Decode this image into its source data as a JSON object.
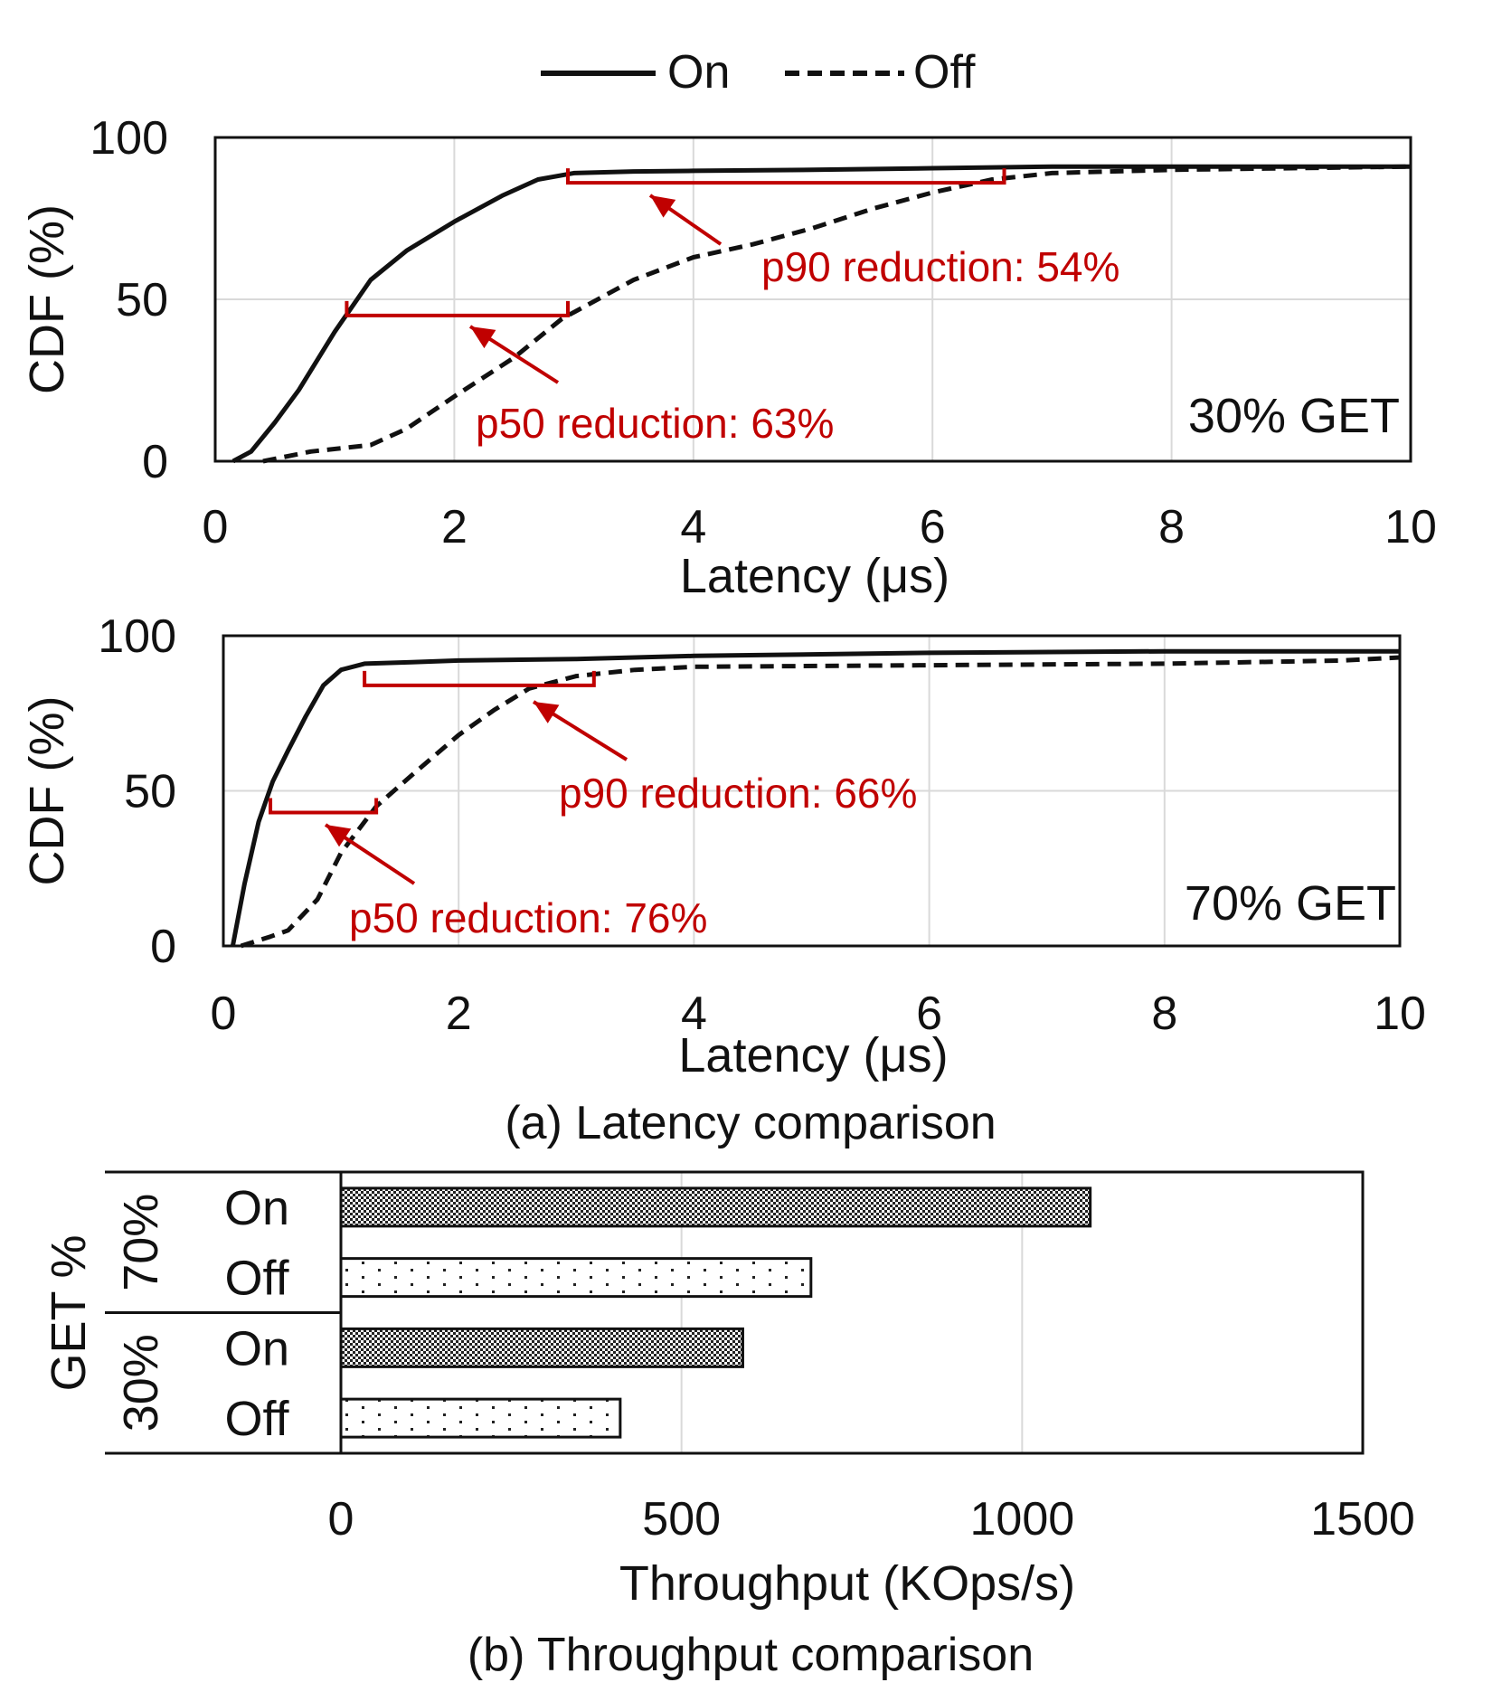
{
  "legend": {
    "items": [
      {
        "label": "On",
        "style": "solid"
      },
      {
        "label": "Off",
        "style": "dashed"
      }
    ]
  },
  "colors": {
    "line": "#111111",
    "annotation": "#c00000",
    "grid": "#d9d9d9"
  },
  "chart_data": [
    {
      "type": "line",
      "panel": "a-top",
      "xlabel": "Latency (μs)",
      "ylabel": "CDF (%)",
      "xlim": [
        0,
        10
      ],
      "ylim": [
        0,
        100
      ],
      "xticks": [
        "0",
        "2",
        "4",
        "6",
        "8",
        "10"
      ],
      "yticks": [
        "0",
        "50",
        "100"
      ],
      "label": "30% GET",
      "series": [
        {
          "name": "On",
          "style": "solid",
          "points": [
            [
              0.15,
              0
            ],
            [
              0.3,
              3
            ],
            [
              0.5,
              12
            ],
            [
              0.7,
              22
            ],
            [
              1.0,
              40
            ],
            [
              1.3,
              56
            ],
            [
              1.6,
              65
            ],
            [
              2.0,
              74
            ],
            [
              2.4,
              82
            ],
            [
              2.7,
              87
            ],
            [
              3.0,
              89
            ],
            [
              3.5,
              89.5
            ],
            [
              4,
              89.7
            ],
            [
              5,
              90
            ],
            [
              6,
              90.5
            ],
            [
              7,
              91
            ],
            [
              8,
              91
            ],
            [
              9,
              91
            ],
            [
              10,
              91
            ]
          ]
        },
        {
          "name": "Off",
          "style": "dashed",
          "points": [
            [
              0.4,
              0
            ],
            [
              0.8,
              3
            ],
            [
              1.3,
              5
            ],
            [
              1.6,
              10
            ],
            [
              2.0,
              20
            ],
            [
              2.5,
              32
            ],
            [
              2.9,
              44
            ],
            [
              3.1,
              48
            ],
            [
              3.5,
              56
            ],
            [
              4.0,
              63
            ],
            [
              4.5,
              67
            ],
            [
              5.0,
              72
            ],
            [
              5.5,
              78
            ],
            [
              6.0,
              83
            ],
            [
              6.5,
              87
            ],
            [
              7.0,
              89
            ],
            [
              8.0,
              90
            ],
            [
              9.0,
              90.5
            ],
            [
              10,
              91
            ]
          ]
        }
      ],
      "annotations": [
        {
          "text": "p90 reduction: 54%",
          "bracket": [
            2.95,
            6.6
          ],
          "bracket_y": 86
        },
        {
          "text": "p50 reduction: 63%",
          "bracket": [
            1.1,
            2.95
          ],
          "bracket_y": 45
        }
      ]
    },
    {
      "type": "line",
      "panel": "a-bottom",
      "xlabel": "Latency (μs)",
      "ylabel": "CDF (%)",
      "xlim": [
        0,
        10
      ],
      "ylim": [
        0,
        100
      ],
      "xticks": [
        "0",
        "2",
        "4",
        "6",
        "8",
        "10"
      ],
      "yticks": [
        "0",
        "50",
        "100"
      ],
      "label": "70% GET",
      "series": [
        {
          "name": "On",
          "style": "solid",
          "points": [
            [
              0.08,
              0
            ],
            [
              0.18,
              20
            ],
            [
              0.3,
              40
            ],
            [
              0.42,
              53
            ],
            [
              0.55,
              63
            ],
            [
              0.7,
              74
            ],
            [
              0.85,
              84
            ],
            [
              1.0,
              89
            ],
            [
              1.2,
              91
            ],
            [
              1.6,
              91.5
            ],
            [
              2,
              92
            ],
            [
              3,
              92.5
            ],
            [
              4,
              93.5
            ],
            [
              6,
              94.5
            ],
            [
              8,
              95
            ],
            [
              10,
              95
            ]
          ]
        },
        {
          "name": "Off",
          "style": "dashed",
          "points": [
            [
              0.15,
              0
            ],
            [
              0.4,
              3
            ],
            [
              0.55,
              5
            ],
            [
              0.8,
              15
            ],
            [
              1.0,
              30
            ],
            [
              1.3,
              45
            ],
            [
              1.6,
              55
            ],
            [
              2.0,
              68
            ],
            [
              2.3,
              76
            ],
            [
              2.6,
              83
            ],
            [
              3.0,
              87
            ],
            [
              3.5,
              89
            ],
            [
              4,
              90
            ],
            [
              6,
              90.5
            ],
            [
              8,
              91
            ],
            [
              9.5,
              92
            ],
            [
              10,
              93
            ]
          ]
        }
      ],
      "annotations": [
        {
          "text": "p90 reduction: 66%",
          "bracket": [
            1.2,
            3.15
          ],
          "bracket_y": 84
        },
        {
          "text": "p50 reduction: 76%",
          "bracket": [
            0.4,
            1.3
          ],
          "bracket_y": 43
        }
      ]
    },
    {
      "type": "bar",
      "orientation": "horizontal",
      "panel": "b",
      "xlabel": "Throughput (KOps/s)",
      "ylabel": "GET %",
      "xlim": [
        0,
        1500
      ],
      "xticks": [
        "0",
        "500",
        "1000",
        "1500"
      ],
      "groups": [
        {
          "label": "70%",
          "bars": [
            {
              "name": "On",
              "value": 1100
            },
            {
              "name": "Off",
              "value": 690
            }
          ]
        },
        {
          "label": "30%",
          "bars": [
            {
              "name": "On",
              "value": 590
            },
            {
              "name": "Off",
              "value": 410
            }
          ]
        }
      ]
    }
  ],
  "captions": {
    "a": "(a) Latency comparison",
    "b": "(b) Throughput comparison"
  }
}
